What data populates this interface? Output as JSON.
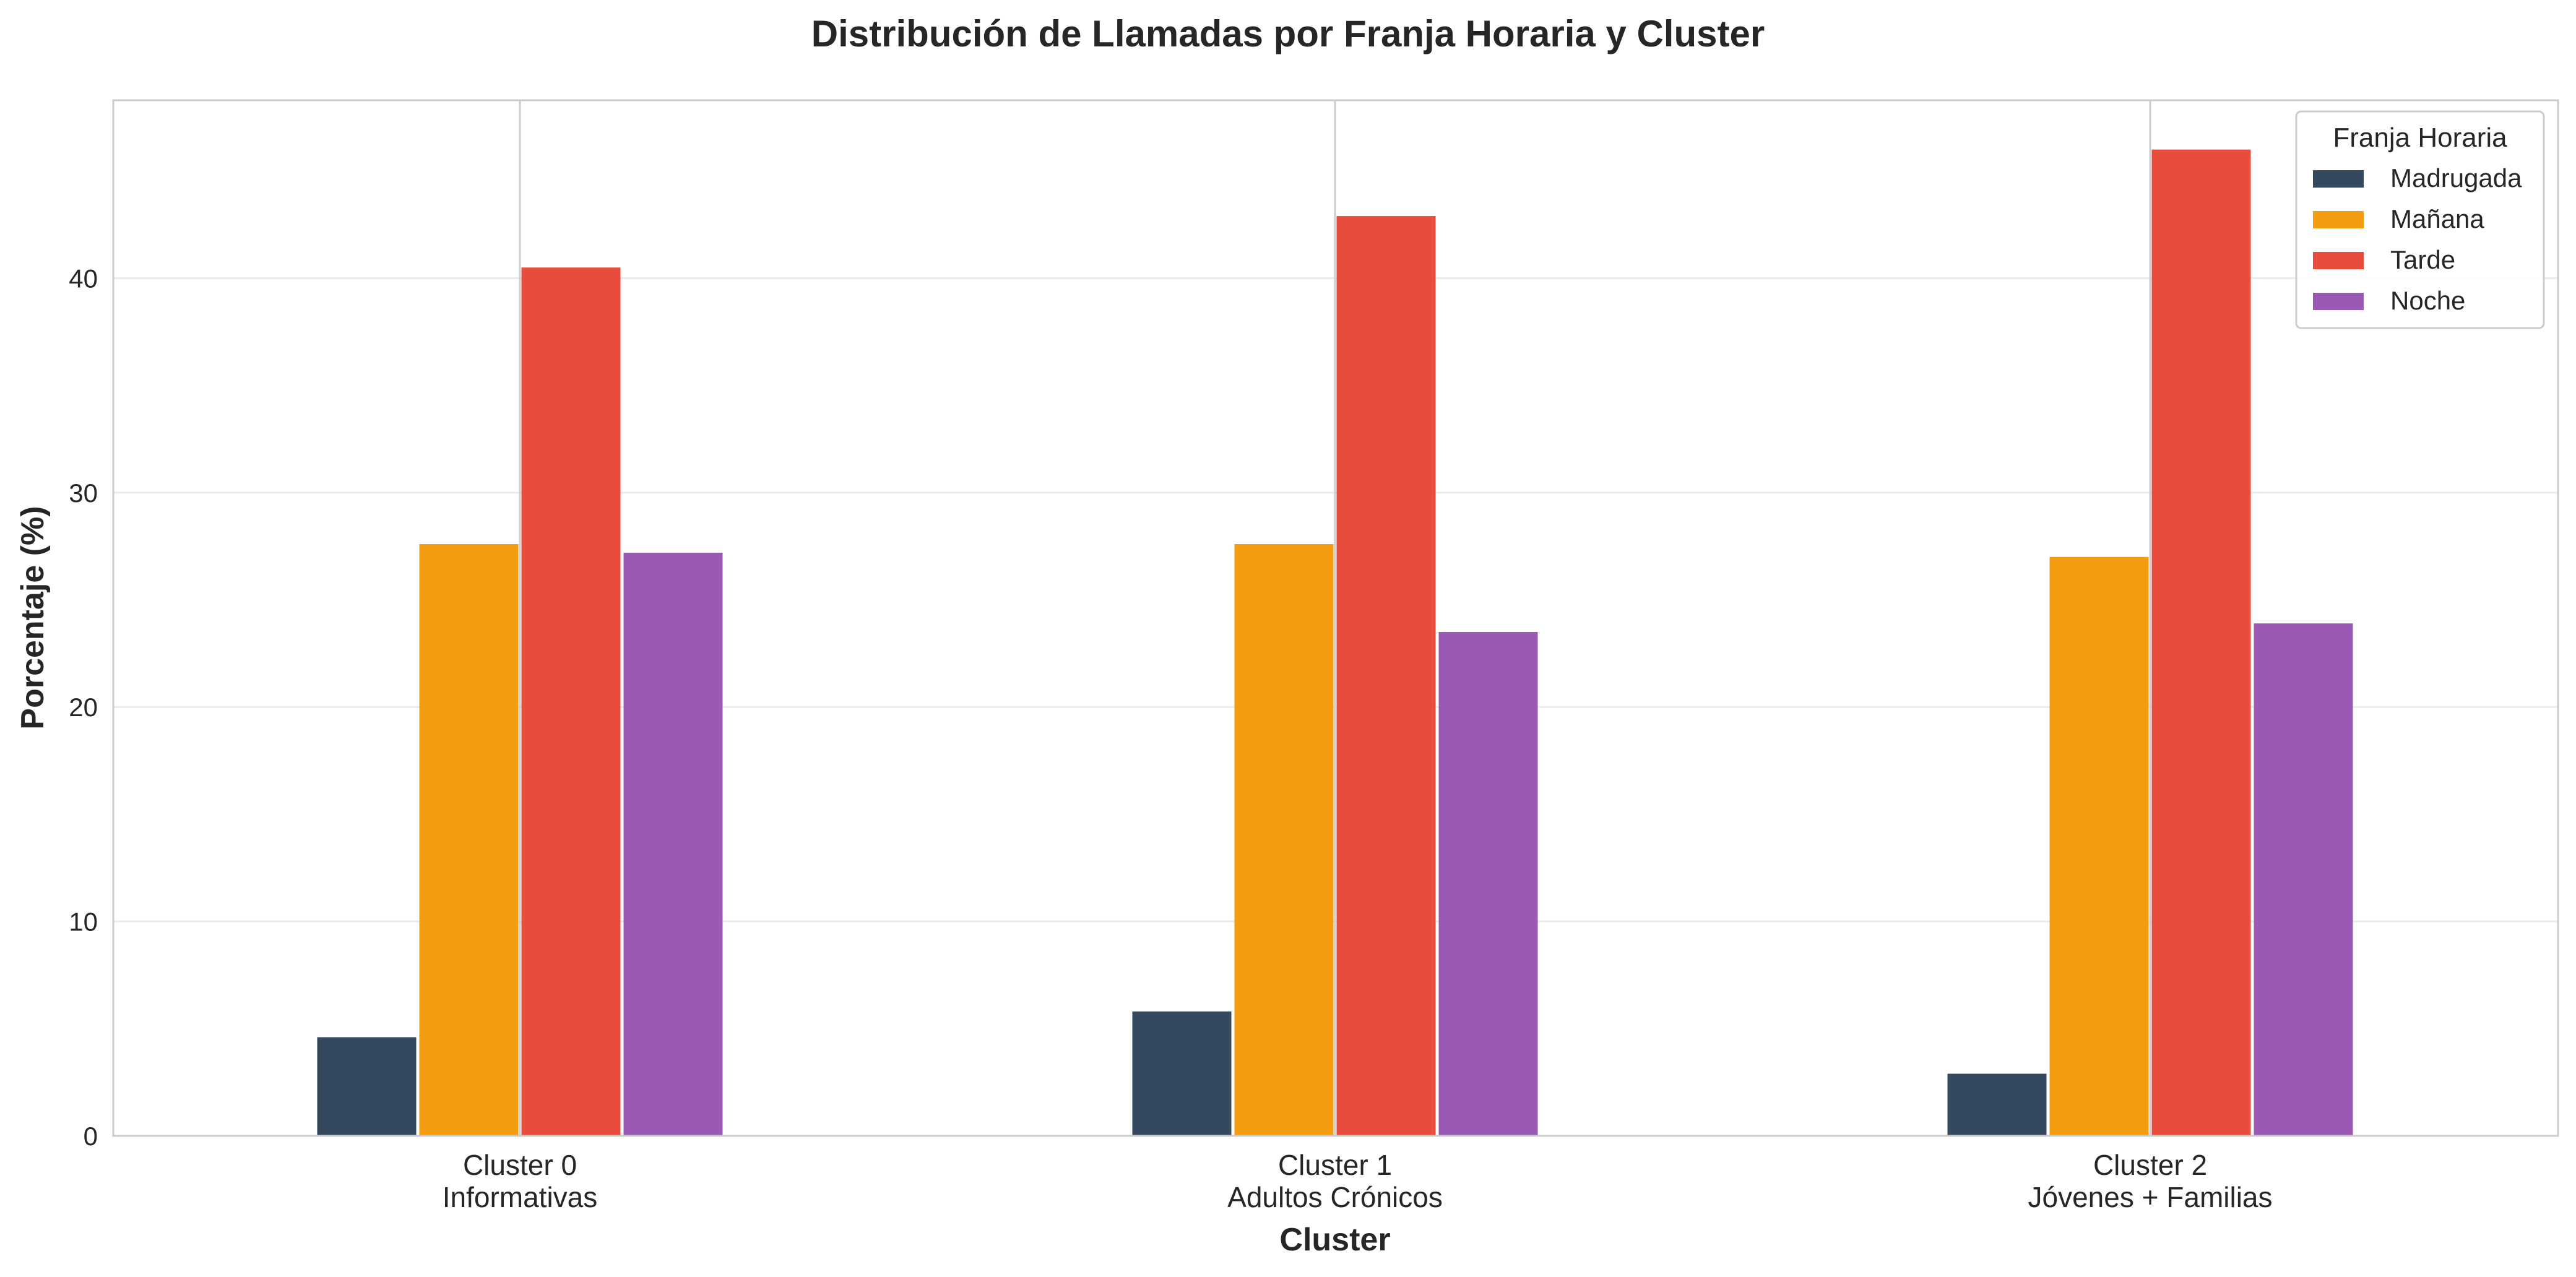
{
  "chart_data": {
    "type": "bar",
    "title": "Distribución de Llamadas por Franja Horaria y Cluster",
    "xlabel": "Cluster",
    "ylabel": "Porcentaje (%)",
    "ylim": [
      0,
      48.3
    ],
    "yticks": [
      "0",
      "10",
      "20",
      "30",
      "40"
    ],
    "grid": true,
    "categories": [
      [
        "Cluster 0",
        "Informativas"
      ],
      [
        "Cluster 1",
        "Adultos Crónicos"
      ],
      [
        "Cluster 2",
        "Jóvenes + Familias"
      ]
    ],
    "legend": {
      "title": "Franja Horaria",
      "placement": "top-right"
    },
    "series": [
      {
        "name": "Madrugada",
        "color": "#34495e",
        "values": [
          4.6,
          5.8,
          2.9
        ]
      },
      {
        "name": "Mañana",
        "color": "#f39c12",
        "values": [
          27.6,
          27.6,
          27.0
        ]
      },
      {
        "name": "Tarde",
        "color": "#e74c3c",
        "values": [
          40.5,
          42.9,
          46.0
        ]
      },
      {
        "name": "Noche",
        "color": "#9b59b6",
        "values": [
          27.2,
          23.5,
          23.9
        ]
      }
    ]
  }
}
